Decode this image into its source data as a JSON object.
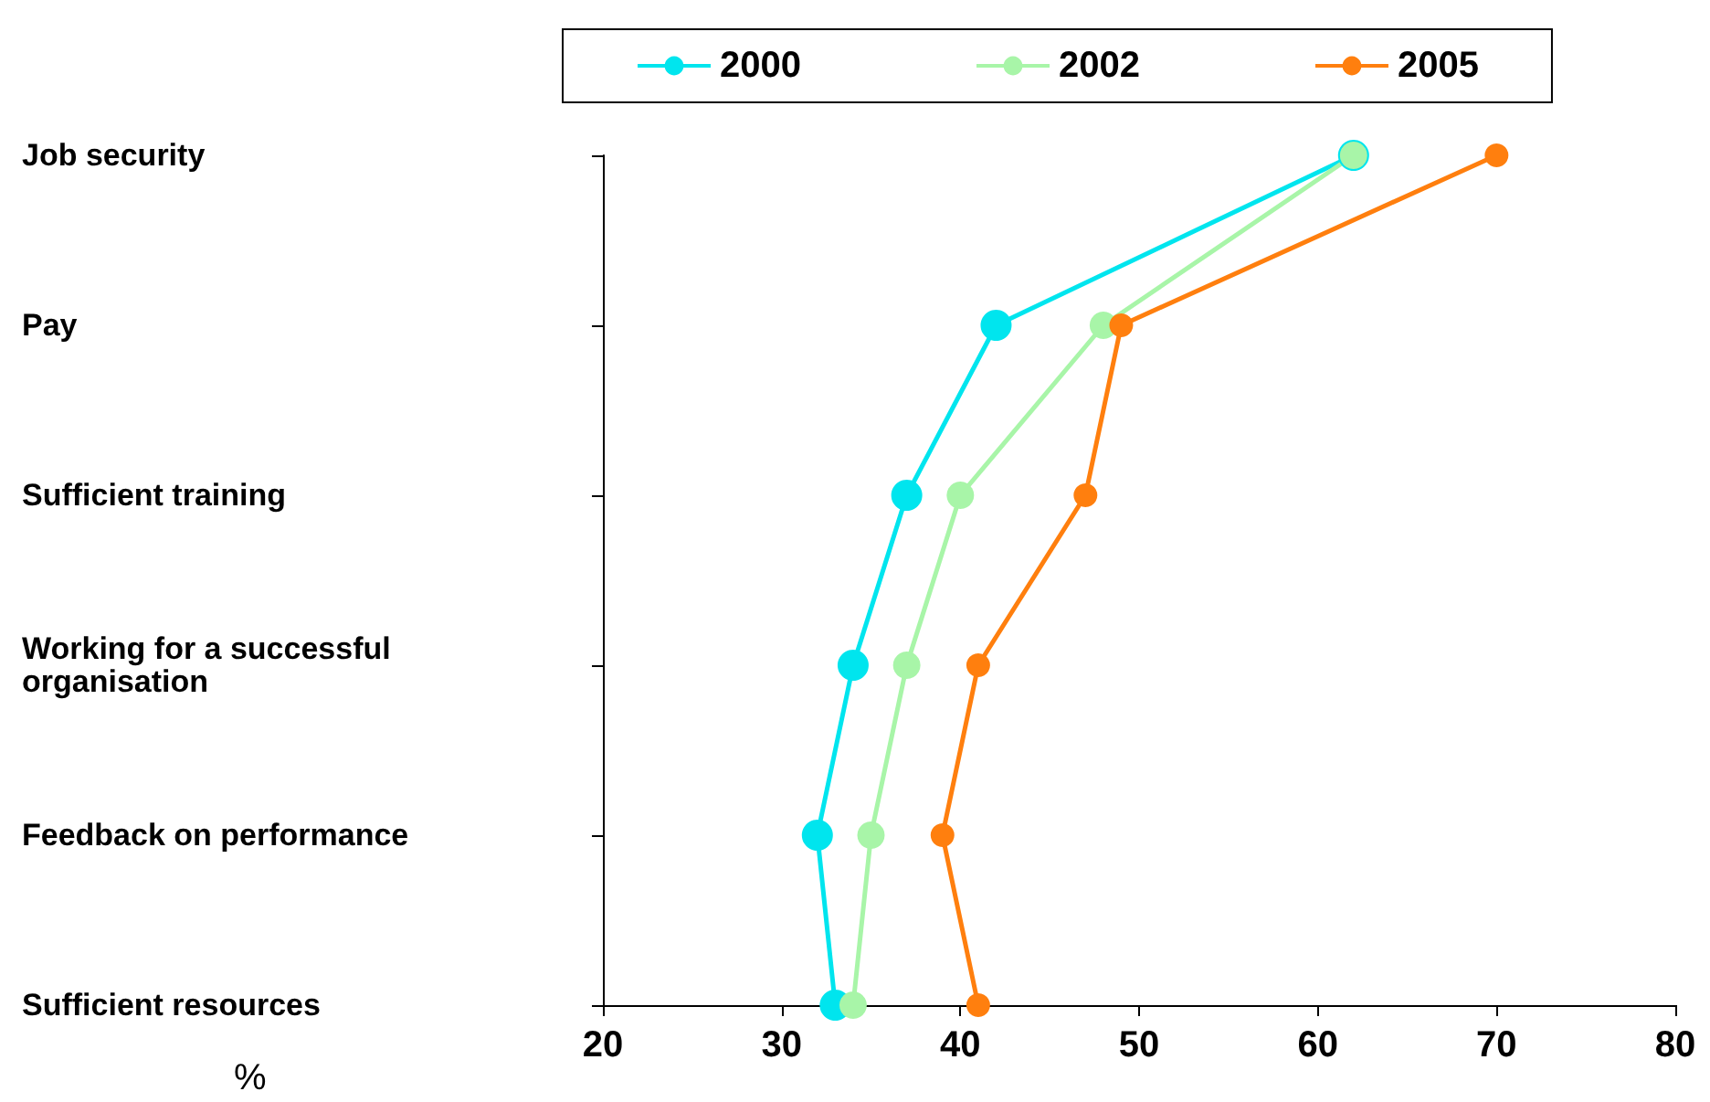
{
  "chart_data": {
    "type": "line",
    "orientation": "horizontal",
    "xlabel": "%",
    "categories": [
      "Job security",
      "Pay",
      "Sufficient training",
      "Working for a successful organisation",
      "Feedback on performance",
      "Sufficient resources"
    ],
    "series": [
      {
        "name": "2000",
        "color": "#00e5ee",
        "values": [
          62,
          42,
          37,
          34,
          32,
          33
        ]
      },
      {
        "name": "2002",
        "color": "#a8f5a8",
        "values": [
          62,
          48,
          40,
          37,
          35,
          34
        ]
      },
      {
        "name": "2005",
        "color": "#ff7f0e",
        "values": [
          70,
          49,
          47,
          41,
          39,
          41
        ]
      }
    ],
    "xlim": [
      20,
      80
    ],
    "xticks": [
      20,
      30,
      40,
      50,
      60,
      70,
      80
    ],
    "grid": false,
    "legend": "top",
    "marker": "circle",
    "line_style": "solid"
  }
}
